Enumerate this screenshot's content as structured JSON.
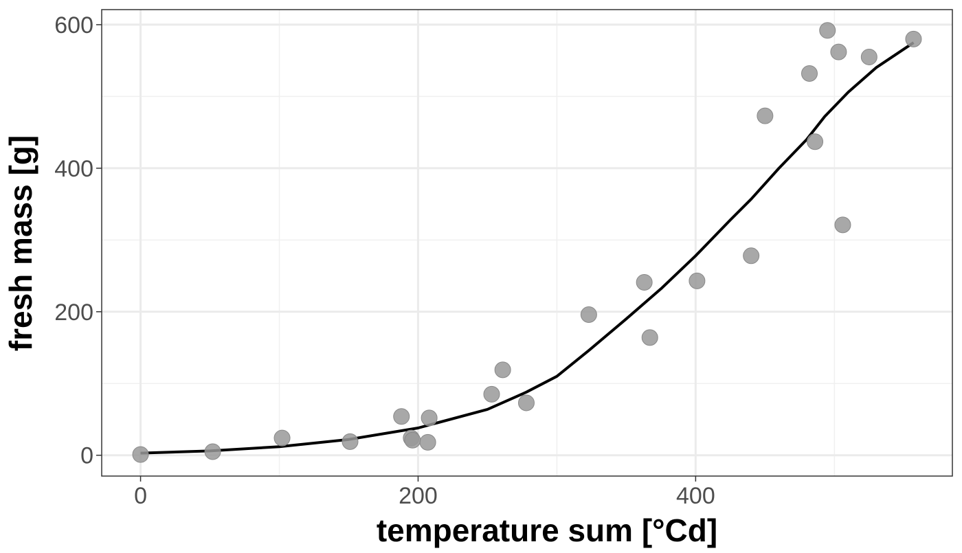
{
  "chart_data": {
    "type": "scatter",
    "title": "",
    "xlabel": "temperature sum [°Cd]",
    "ylabel": "fresh mass [g]",
    "xlim": [
      -28,
      585
    ],
    "ylim": [
      -29,
      621
    ],
    "xticks": [
      0,
      200,
      400
    ],
    "yticks": [
      0,
      200,
      400,
      600
    ],
    "x_minor_grid": [
      100,
      300,
      500
    ],
    "y_minor_grid": [
      100,
      300,
      500
    ],
    "grid": true,
    "point_color": "#999999",
    "line_color": "#000000",
    "points": [
      [
        0,
        1
      ],
      [
        52,
        5
      ],
      [
        102,
        24
      ],
      [
        151,
        19
      ],
      [
        188,
        54
      ],
      [
        195,
        24
      ],
      [
        196,
        21
      ],
      [
        207,
        18
      ],
      [
        208,
        52
      ],
      [
        253,
        85
      ],
      [
        261,
        119
      ],
      [
        278,
        73
      ],
      [
        323,
        196
      ],
      [
        363,
        241
      ],
      [
        367,
        164
      ],
      [
        401,
        243
      ],
      [
        440,
        278
      ],
      [
        450,
        473
      ],
      [
        482,
        532
      ],
      [
        486,
        437
      ],
      [
        495,
        592
      ],
      [
        503,
        562
      ],
      [
        506,
        321
      ],
      [
        525,
        555
      ],
      [
        557,
        580
      ]
    ],
    "fit_line": [
      [
        0,
        3
      ],
      [
        50,
        6
      ],
      [
        100,
        12
      ],
      [
        150,
        22
      ],
      [
        200,
        38
      ],
      [
        250,
        64
      ],
      [
        278,
        88
      ],
      [
        300,
        110
      ],
      [
        323,
        146
      ],
      [
        350,
        190
      ],
      [
        375,
        232
      ],
      [
        400,
        278
      ],
      [
        425,
        328
      ],
      [
        440,
        357
      ],
      [
        460,
        400
      ],
      [
        480,
        440
      ],
      [
        493,
        472
      ],
      [
        510,
        506
      ],
      [
        530,
        540
      ],
      [
        557,
        575
      ]
    ]
  }
}
